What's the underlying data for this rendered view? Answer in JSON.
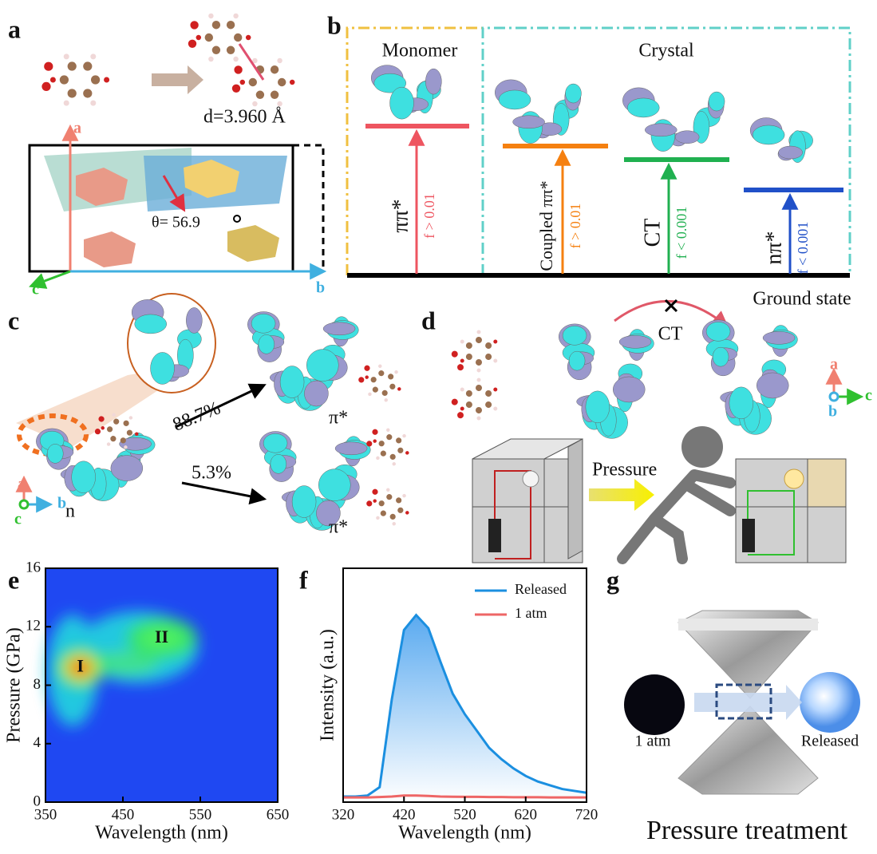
{
  "panels": {
    "a": {
      "label": "a",
      "distance": "d=3.960 Å",
      "angle": "θ= 56.9",
      "axes": [
        "a",
        "b",
        "c"
      ]
    },
    "b": {
      "label": "b",
      "monomer": "Monomer",
      "crystal": "Crystal",
      "states": [
        {
          "name": "ππ*",
          "f": "f > 0.01"
        },
        {
          "name": "Coupled ππ*",
          "f": "f > 0.01"
        },
        {
          "name": "CT",
          "f": "f < 0.001"
        },
        {
          "name": "nπ*",
          "f": "f < 0.001"
        }
      ],
      "ground": "Ground state"
    },
    "c": {
      "label": "c",
      "branches": [
        "88.7%",
        "5.3%"
      ],
      "targets": [
        "π*",
        "π*"
      ],
      "origin": "n",
      "axes": [
        "a",
        "b",
        "c"
      ]
    },
    "d": {
      "label": "d",
      "ct": "CT",
      "pressure": "Pressure",
      "axes": [
        "a",
        "b",
        "c"
      ]
    },
    "g": {
      "label": "g",
      "left": "1 atm",
      "right": "Released",
      "caption": "Pressure treatment"
    }
  },
  "chart_data": [
    {
      "type": "heatmap",
      "panel": "e",
      "xlabel": "Wavelength (nm)",
      "ylabel": "Pressure (GPa)",
      "xlim": [
        350,
        650
      ],
      "xticks": [
        350,
        450,
        550,
        650
      ],
      "ylim": [
        0,
        16
      ],
      "yticks": [
        0,
        4,
        8,
        12,
        16
      ],
      "peaks": [
        {
          "name": "I",
          "x": 395,
          "y": 9.2
        },
        {
          "name": "II",
          "x": 500,
          "y": 11.2
        }
      ]
    },
    {
      "type": "line",
      "panel": "f",
      "xlabel": "Wavelength (nm)",
      "ylabel": "Intensity (a.u.)",
      "x": [
        320,
        340,
        360,
        380,
        400,
        420,
        440,
        460,
        480,
        500,
        520,
        540,
        560,
        580,
        600,
        620,
        640,
        660,
        680,
        700,
        720
      ],
      "xlim": [
        320,
        720
      ],
      "xticks": [
        320,
        420,
        520,
        620,
        720
      ],
      "ylim": [
        0,
        125
      ],
      "legend": "upper right",
      "series": [
        {
          "name": "Released",
          "color": "#1b8fe0",
          "values": [
            3,
            3,
            3.5,
            8,
            55,
            92,
            100,
            93,
            75,
            58,
            47,
            38,
            29,
            23,
            18,
            14,
            11,
            9,
            7,
            6,
            5
          ]
        },
        {
          "name": "1 atm",
          "color": "#ee6666",
          "values": [
            2.5,
            2.5,
            2.5,
            2.7,
            3,
            3.5,
            3.5,
            3.3,
            3,
            2.9,
            2.8,
            2.8,
            2.7,
            2.7,
            2.6,
            2.6,
            2.6,
            2.5,
            2.5,
            2.5,
            2.5
          ]
        }
      ]
    }
  ]
}
